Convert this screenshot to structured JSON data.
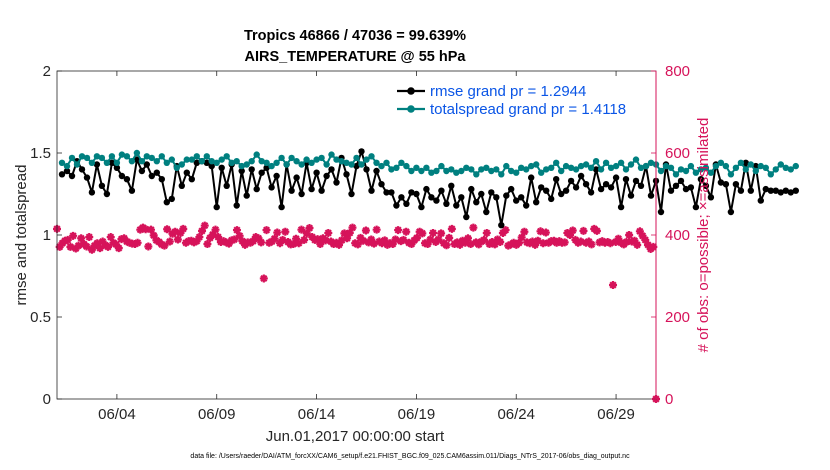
{
  "chart_data": {
    "type": "line",
    "title_line1": "Tropics 46866 / 47036 = 99.639%",
    "title_line2": "AIRS_TEMPERATURE @ 55 hPa",
    "xlabel": "Jun.01,2017 00:00:00 start",
    "ylabel_left": "rmse and totalspread",
    "ylabel_right": "# of obs: o=possible; ×=assimilated",
    "footnote": "data file: /Users/raeder/DAI/ATM_forcXX/CAM6_setup/f.e21.FHIST_BGC.f09_025.CAM6assim.011/Diags_NTrS_2017-06/obs_diag_output.nc",
    "x_range_days": [
      1.0,
      31.0
    ],
    "ylim_left": [
      0,
      2
    ],
    "ylim_right": [
      0,
      800
    ],
    "xticks": [
      {
        "day": 4,
        "label": "06/04"
      },
      {
        "day": 9,
        "label": "06/09"
      },
      {
        "day": 14,
        "label": "06/14"
      },
      {
        "day": 19,
        "label": "06/19"
      },
      {
        "day": 24,
        "label": "06/24"
      },
      {
        "day": 29,
        "label": "06/29"
      }
    ],
    "yticks_left": [
      "0",
      "0.5",
      "1",
      "1.5",
      "2"
    ],
    "yticks_left_values": [
      0,
      0.5,
      1,
      1.5,
      2
    ],
    "yticks_right": [
      "0",
      "200",
      "400",
      "600",
      "800"
    ],
    "yticks_right_values": [
      0,
      200,
      400,
      600,
      800
    ],
    "x_start_day": 1.25,
    "x_step_days": 0.25,
    "series": [
      {
        "name": "rmse grand pr = 1.2944",
        "color": "#000000",
        "values": [
          1.37,
          1.39,
          1.36,
          1.45,
          1.4,
          1.35,
          1.26,
          1.43,
          1.3,
          1.25,
          1.44,
          1.41,
          1.36,
          1.34,
          1.27,
          1.46,
          1.39,
          1.43,
          1.36,
          1.38,
          1.34,
          1.2,
          1.22,
          1.42,
          1.3,
          1.38,
          1.34,
          1.44,
          1.45,
          1.44,
          1.42,
          1.17,
          1.41,
          1.3,
          1.43,
          1.18,
          1.39,
          1.24,
          1.4,
          1.28,
          1.38,
          1.41,
          1.29,
          1.36,
          1.17,
          1.43,
          1.27,
          1.35,
          1.25,
          1.44,
          1.28,
          1.38,
          1.27,
          1.36,
          1.4,
          1.32,
          1.47,
          1.37,
          1.25,
          1.42,
          1.51,
          1.4,
          1.27,
          1.39,
          1.31,
          1.26,
          1.26,
          1.18,
          1.23,
          1.19,
          1.26,
          1.25,
          1.17,
          1.28,
          1.23,
          1.21,
          1.27,
          1.19,
          1.3,
          1.18,
          1.23,
          1.11,
          1.28,
          1.2,
          1.25,
          1.14,
          1.26,
          1.23,
          1.06,
          1.24,
          1.28,
          1.21,
          1.23,
          1.18,
          1.35,
          1.2,
          1.29,
          1.27,
          1.22,
          1.34,
          1.25,
          1.27,
          1.33,
          1.29,
          1.36,
          1.31,
          1.26,
          1.4,
          1.28,
          1.31,
          1.29,
          1.35,
          1.17,
          1.34,
          1.24,
          1.33,
          1.3,
          1.42,
          1.24,
          1.33,
          1.14,
          1.43,
          1.27,
          1.3,
          1.33,
          1.28,
          1.29,
          1.17,
          1.34,
          1.3,
          1.23,
          1.43,
          1.32,
          1.31,
          1.14,
          1.31,
          1.27,
          1.44,
          1.27,
          1.42,
          1.21,
          1.28,
          1.27,
          1.27,
          1.26,
          1.27,
          1.26,
          1.27
        ]
      },
      {
        "name": "totalspread grand pr = 1.4118",
        "color": "#008080",
        "values": [
          1.44,
          1.42,
          1.47,
          1.43,
          1.48,
          1.47,
          1.44,
          1.48,
          1.47,
          1.44,
          1.48,
          1.44,
          1.49,
          1.48,
          1.45,
          1.5,
          1.45,
          1.48,
          1.47,
          1.45,
          1.48,
          1.44,
          1.46,
          1.41,
          1.43,
          1.46,
          1.46,
          1.48,
          1.45,
          1.48,
          1.45,
          1.44,
          1.46,
          1.48,
          1.44,
          1.45,
          1.42,
          1.43,
          1.45,
          1.49,
          1.45,
          1.44,
          1.42,
          1.44,
          1.47,
          1.43,
          1.47,
          1.45,
          1.43,
          1.46,
          1.44,
          1.46,
          1.47,
          1.43,
          1.49,
          1.46,
          1.45,
          1.44,
          1.43,
          1.47,
          1.43,
          1.46,
          1.48,
          1.44,
          1.42,
          1.44,
          1.4,
          1.41,
          1.44,
          1.42,
          1.39,
          1.41,
          1.39,
          1.41,
          1.38,
          1.39,
          1.42,
          1.39,
          1.4,
          1.38,
          1.39,
          1.41,
          1.4,
          1.37,
          1.4,
          1.41,
          1.39,
          1.4,
          1.37,
          1.42,
          1.39,
          1.38,
          1.41,
          1.4,
          1.42,
          1.43,
          1.38,
          1.4,
          1.41,
          1.44,
          1.39,
          1.42,
          1.41,
          1.4,
          1.42,
          1.43,
          1.41,
          1.45,
          1.4,
          1.44,
          1.41,
          1.42,
          1.44,
          1.4,
          1.43,
          1.46,
          1.41,
          1.42,
          1.44,
          1.43,
          1.39,
          1.42,
          1.41,
          1.37,
          1.4,
          1.39,
          1.42,
          1.38,
          1.4,
          1.41,
          1.38,
          1.42,
          1.44,
          1.42,
          1.37,
          1.41,
          1.44,
          1.4,
          1.43,
          1.39,
          1.42,
          1.41,
          1.37,
          1.4,
          1.43,
          1.41,
          1.4,
          1.42
        ]
      }
    ],
    "obs": {
      "name": "# of obs",
      "color": "#d6135a",
      "values": [
        415,
        371,
        380,
        386,
        388,
        371,
        398,
        367,
        374,
        392,
        378,
        372,
        395,
        364,
        374,
        380,
        368,
        384,
        375,
        371,
        395,
        381,
        377,
        368,
        390,
        392,
        384,
        381,
        379,
        378,
        381,
        413,
        418,
        414,
        372,
        413,
        399,
        387,
        383,
        377,
        374,
        414,
        384,
        403,
        408,
        389,
        405,
        415,
        381,
        385,
        386,
        382,
        385,
        395,
        410,
        423,
        378,
        393,
        401,
        413,
        395,
        383,
        385,
        382,
        379,
        387,
        389,
        412,
        398,
        385,
        376,
        382,
        381,
        385,
        395,
        392,
        382,
        294,
        412,
        381,
        384,
        391,
        406,
        380,
        388,
        408,
        383,
        377,
        378,
        391,
        380,
        413,
        388,
        404,
        417,
        395,
        388,
        390,
        378,
        392,
        387,
        405,
        384,
        378,
        381,
        376,
        387,
        404,
        392,
        405,
        418,
        380,
        377,
        393,
        386,
        411,
        382,
        389,
        379,
        413,
        384,
        380,
        387,
        376,
        380,
        378,
        389,
        412,
        385,
        388,
        408,
        381,
        378,
        387,
        393,
        408,
        404,
        380,
        378,
        389,
        405,
        383,
        389,
        404,
        380,
        375,
        393,
        415,
        378,
        382,
        376,
        386,
        381,
        392,
        378,
        418,
        382,
        377,
        384,
        388,
        405,
        378,
        383,
        377,
        389,
        383,
        405,
        412,
        374,
        377,
        381,
        376,
        381,
        394,
        408,
        382,
        380,
        384,
        376,
        386,
        409,
        380,
        406,
        381,
        385,
        386,
        381,
        385,
        381,
        382,
        405,
        400,
        411,
        388,
        381,
        384,
        410,
        381,
        384,
        377,
        415,
        410,
        382,
        385,
        381,
        383,
        380,
        278,
        383,
        391,
        381,
        377,
        383,
        400,
        384,
        386,
        376,
        409,
        398,
        388,
        376,
        366,
        371,
        0
      ]
    }
  }
}
